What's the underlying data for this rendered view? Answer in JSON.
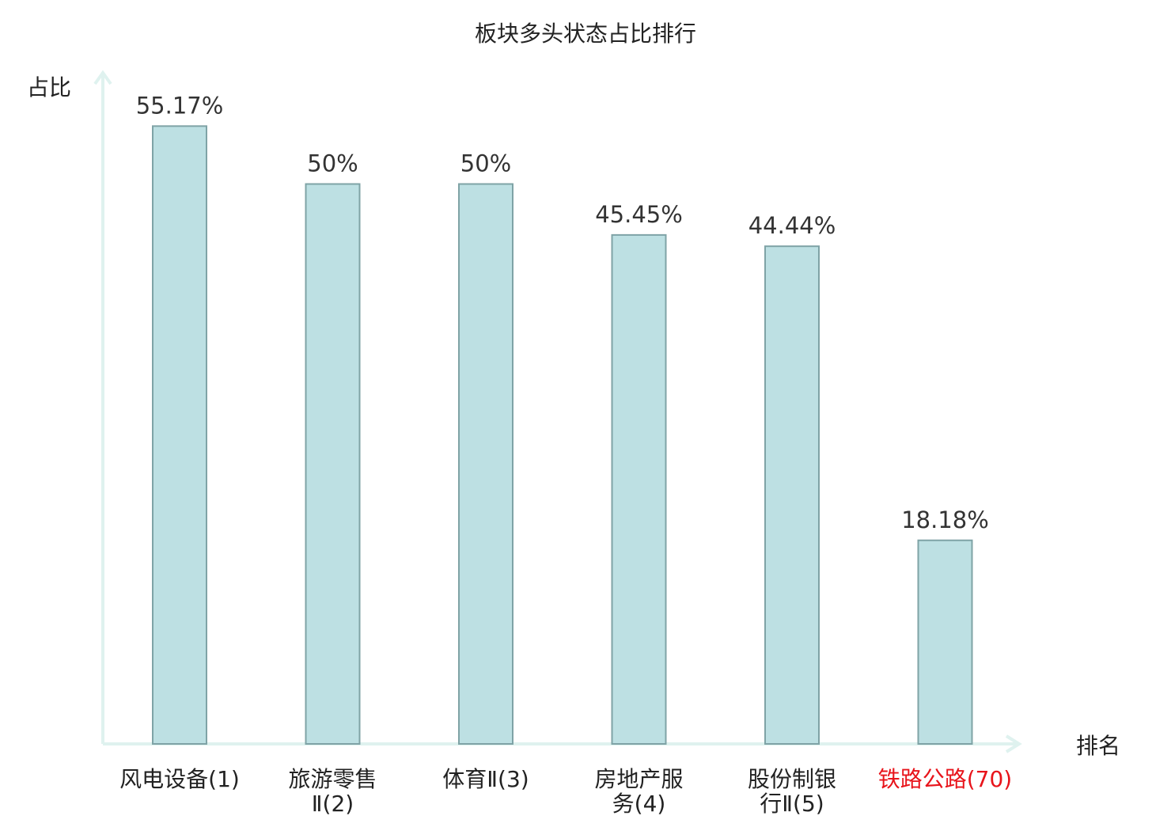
{
  "chart_data": {
    "type": "bar",
    "title": "板块多头状态占比排行",
    "ylabel": "占比",
    "xlabel": "排名",
    "categories": [
      [
        "风电设备(1)"
      ],
      [
        "旅游零售",
        "Ⅱ(2)"
      ],
      [
        "体育Ⅱ(3)"
      ],
      [
        "房地产服",
        "务(4)"
      ],
      [
        "股份制银",
        "行Ⅱ(5)"
      ],
      [
        "铁路公路(70)"
      ]
    ],
    "values": [
      55.17,
      50,
      50,
      45.45,
      44.44,
      18.18
    ],
    "value_labels": [
      "55.17%",
      "50%",
      "50%",
      "45.45%",
      "44.44%",
      "18.18%"
    ],
    "highlight_index": 5,
    "ylim": [
      0,
      60
    ],
    "grid": false,
    "colors": {
      "bar_fill": "#bde0e3",
      "bar_stroke": "#7fa3a6",
      "axis": "#dff2ef",
      "text": "#333333",
      "title_text": "#222222",
      "highlight_text": "#e8141b"
    }
  }
}
